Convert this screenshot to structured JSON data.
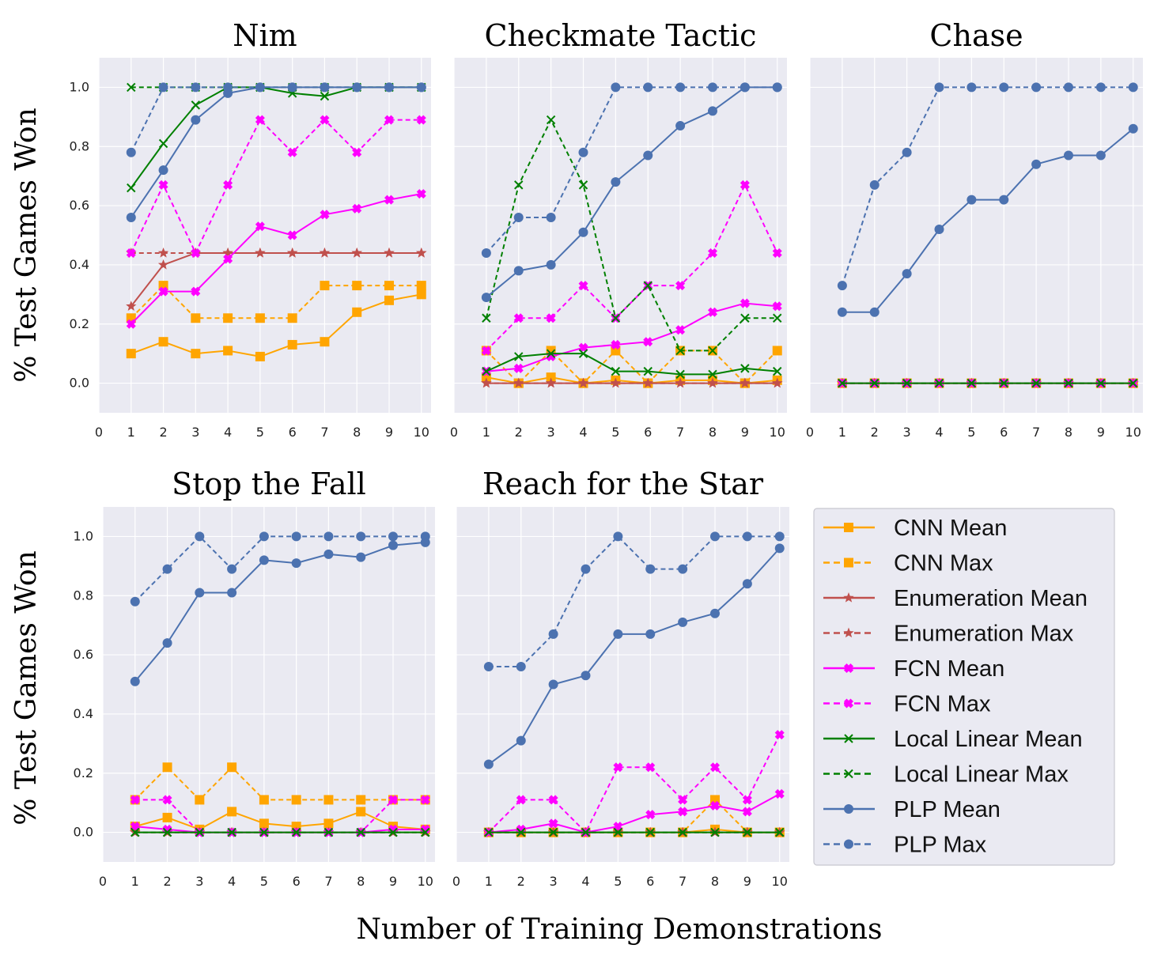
{
  "chart_data": {
    "type": "line",
    "xlabel": "Number of Training Demonstrations",
    "ylabel": "% Test Games Won",
    "xlim": [
      0,
      10.3
    ],
    "ylim": [
      -0.1,
      1.1
    ],
    "x": [
      1,
      2,
      3,
      4,
      5,
      6,
      7,
      8,
      9,
      10
    ],
    "xticks": [
      "0",
      "1",
      "2",
      "3",
      "4",
      "5",
      "6",
      "7",
      "8",
      "9",
      "10"
    ],
    "yticks": [
      "0.0",
      "0.2",
      "0.4",
      "0.6",
      "0.8",
      "1.0"
    ],
    "grid": true,
    "legend_position": "bottom-right",
    "series_styles": [
      {
        "name": "CNN Mean",
        "color": "#FFA500",
        "dash": "solid",
        "marker": "square"
      },
      {
        "name": "CNN Max",
        "color": "#FFA500",
        "dash": "dashed",
        "marker": "square"
      },
      {
        "name": "Enumeration Mean",
        "color": "#C0504D",
        "dash": "solid",
        "marker": "star"
      },
      {
        "name": "Enumeration Max",
        "color": "#C0504D",
        "dash": "dashed",
        "marker": "star"
      },
      {
        "name": "FCN Mean",
        "color": "#FF00FF",
        "dash": "solid",
        "marker": "plus"
      },
      {
        "name": "FCN Max",
        "color": "#FF00FF",
        "dash": "dashed",
        "marker": "plus"
      },
      {
        "name": "Local Linear Mean",
        "color": "#008000",
        "dash": "solid",
        "marker": "x"
      },
      {
        "name": "Local Linear Max",
        "color": "#008000",
        "dash": "dashed",
        "marker": "x"
      },
      {
        "name": "PLP Mean",
        "color": "#4C72B0",
        "dash": "solid",
        "marker": "circle"
      },
      {
        "name": "PLP Max",
        "color": "#4C72B0",
        "dash": "dashed",
        "marker": "circle"
      }
    ],
    "panels": [
      {
        "title": "Nim",
        "series": [
          {
            "name": "CNN Mean",
            "values": [
              0.1,
              0.14,
              0.1,
              0.11,
              0.09,
              0.13,
              0.14,
              0.24,
              0.28,
              0.3
            ]
          },
          {
            "name": "CNN Max",
            "values": [
              0.22,
              0.33,
              0.22,
              0.22,
              0.22,
              0.22,
              0.33,
              0.33,
              0.33,
              0.33
            ]
          },
          {
            "name": "Enumeration Mean",
            "values": [
              0.26,
              0.4,
              0.44,
              0.44,
              0.44,
              0.44,
              0.44,
              0.44,
              0.44,
              0.44
            ]
          },
          {
            "name": "Enumeration Max",
            "values": [
              0.44,
              0.44,
              0.44,
              0.44,
              0.44,
              0.44,
              0.44,
              0.44,
              0.44,
              0.44
            ]
          },
          {
            "name": "FCN Mean",
            "values": [
              0.2,
              0.31,
              0.31,
              0.42,
              0.53,
              0.5,
              0.57,
              0.59,
              0.62,
              0.64
            ]
          },
          {
            "name": "FCN Max",
            "values": [
              0.44,
              0.67,
              0.44,
              0.67,
              0.89,
              0.78,
              0.89,
              0.78,
              0.89,
              0.89
            ]
          },
          {
            "name": "Local Linear Mean",
            "values": [
              0.66,
              0.81,
              0.94,
              1.0,
              1.0,
              0.98,
              0.97,
              1.0,
              1.0,
              1.0
            ]
          },
          {
            "name": "Local Linear Max",
            "values": [
              1.0,
              1.0,
              1.0,
              1.0,
              1.0,
              1.0,
              1.0,
              1.0,
              1.0,
              1.0
            ]
          },
          {
            "name": "PLP Mean",
            "values": [
              0.56,
              0.72,
              0.89,
              0.98,
              1.0,
              1.0,
              1.0,
              1.0,
              1.0,
              1.0
            ]
          },
          {
            "name": "PLP Max",
            "values": [
              0.78,
              1.0,
              1.0,
              1.0,
              1.0,
              1.0,
              1.0,
              1.0,
              1.0,
              1.0
            ]
          }
        ]
      },
      {
        "title": "Checkmate Tactic",
        "series": [
          {
            "name": "CNN Mean",
            "values": [
              0.02,
              0.0,
              0.02,
              0.0,
              0.01,
              0.0,
              0.01,
              0.01,
              0.0,
              0.01
            ]
          },
          {
            "name": "CNN Max",
            "values": [
              0.11,
              0.0,
              0.11,
              0.0,
              0.11,
              0.0,
              0.11,
              0.11,
              0.0,
              0.11
            ]
          },
          {
            "name": "Enumeration Mean",
            "values": [
              0.0,
              0.0,
              0.0,
              0.0,
              0.0,
              0.0,
              0.0,
              0.0,
              0.0,
              0.0
            ]
          },
          {
            "name": "Enumeration Max",
            "values": [
              0.0,
              0.0,
              0.0,
              0.0,
              0.0,
              0.0,
              0.0,
              0.0,
              0.0,
              0.0
            ]
          },
          {
            "name": "FCN Mean",
            "values": [
              0.04,
              0.05,
              0.09,
              0.12,
              0.13,
              0.14,
              0.18,
              0.24,
              0.27,
              0.26
            ]
          },
          {
            "name": "FCN Max",
            "values": [
              0.11,
              0.22,
              0.22,
              0.33,
              0.22,
              0.33,
              0.33,
              0.44,
              0.67,
              0.44
            ]
          },
          {
            "name": "Local Linear Mean",
            "values": [
              0.04,
              0.09,
              0.1,
              0.1,
              0.04,
              0.04,
              0.03,
              0.03,
              0.05,
              0.04
            ]
          },
          {
            "name": "Local Linear Max",
            "values": [
              0.22,
              0.67,
              0.89,
              0.67,
              0.22,
              0.33,
              0.11,
              0.11,
              0.22,
              0.22
            ]
          },
          {
            "name": "PLP Mean",
            "values": [
              0.29,
              0.38,
              0.4,
              0.51,
              0.68,
              0.77,
              0.87,
              0.92,
              1.0,
              1.0
            ]
          },
          {
            "name": "PLP Max",
            "values": [
              0.44,
              0.56,
              0.56,
              0.78,
              1.0,
              1.0,
              1.0,
              1.0,
              1.0,
              1.0
            ]
          }
        ]
      },
      {
        "title": "Chase",
        "series": [
          {
            "name": "CNN Mean",
            "values": [
              0,
              0,
              0,
              0,
              0,
              0,
              0,
              0,
              0,
              0
            ]
          },
          {
            "name": "CNN Max",
            "values": [
              0,
              0,
              0,
              0,
              0,
              0,
              0,
              0,
              0,
              0
            ]
          },
          {
            "name": "Enumeration Mean",
            "values": [
              0,
              0,
              0,
              0,
              0,
              0,
              0,
              0,
              0,
              0
            ]
          },
          {
            "name": "Enumeration Max",
            "values": [
              0,
              0,
              0,
              0,
              0,
              0,
              0,
              0,
              0,
              0
            ]
          },
          {
            "name": "FCN Mean",
            "values": [
              0,
              0,
              0,
              0,
              0,
              0,
              0,
              0,
              0,
              0
            ]
          },
          {
            "name": "FCN Max",
            "values": [
              0,
              0,
              0,
              0,
              0,
              0,
              0,
              0,
              0,
              0
            ]
          },
          {
            "name": "Local Linear Mean",
            "values": [
              0,
              0,
              0,
              0,
              0,
              0,
              0,
              0,
              0,
              0
            ]
          },
          {
            "name": "Local Linear Max",
            "values": [
              0,
              0,
              0,
              0,
              0,
              0,
              0,
              0,
              0,
              0
            ]
          },
          {
            "name": "PLP Mean",
            "values": [
              0.24,
              0.24,
              0.37,
              0.52,
              0.62,
              0.62,
              0.74,
              0.77,
              0.77,
              0.86
            ]
          },
          {
            "name": "PLP Max",
            "values": [
              0.33,
              0.67,
              0.78,
              1.0,
              1.0,
              1.0,
              1.0,
              1.0,
              1.0,
              1.0
            ]
          }
        ]
      },
      {
        "title": "Stop the Fall",
        "series": [
          {
            "name": "CNN Mean",
            "values": [
              0.02,
              0.05,
              0.01,
              0.07,
              0.03,
              0.02,
              0.03,
              0.07,
              0.02,
              0.01
            ]
          },
          {
            "name": "CNN Max",
            "values": [
              0.11,
              0.22,
              0.11,
              0.22,
              0.11,
              0.11,
              0.11,
              0.11,
              0.11,
              0.11
            ]
          },
          {
            "name": "Enumeration Mean",
            "values": [
              0,
              0,
              0,
              0,
              0,
              0,
              0,
              0,
              0,
              0
            ]
          },
          {
            "name": "Enumeration Max",
            "values": [
              0,
              0,
              0,
              0,
              0,
              0,
              0,
              0,
              0,
              0
            ]
          },
          {
            "name": "FCN Mean",
            "values": [
              0.02,
              0.01,
              0.0,
              0.0,
              0.0,
              0.0,
              0.0,
              0.0,
              0.01,
              0.01
            ]
          },
          {
            "name": "FCN Max",
            "values": [
              0.11,
              0.11,
              0.0,
              0.0,
              0.0,
              0.0,
              0.0,
              0.0,
              0.11,
              0.11
            ]
          },
          {
            "name": "Local Linear Mean",
            "values": [
              0,
              0,
              0,
              0,
              0,
              0,
              0,
              0,
              0,
              0
            ]
          },
          {
            "name": "Local Linear Max",
            "values": [
              0,
              0,
              0,
              0,
              0,
              0,
              0,
              0,
              0,
              0
            ]
          },
          {
            "name": "PLP Mean",
            "values": [
              0.51,
              0.64,
              0.81,
              0.81,
              0.92,
              0.91,
              0.94,
              0.93,
              0.97,
              0.98
            ]
          },
          {
            "name": "PLP Max",
            "values": [
              0.78,
              0.89,
              1.0,
              0.89,
              1.0,
              1.0,
              1.0,
              1.0,
              1.0,
              1.0
            ]
          }
        ]
      },
      {
        "title": "Reach for the Star",
        "series": [
          {
            "name": "CNN Mean",
            "values": [
              0.0,
              0.0,
              0.0,
              0.0,
              0.0,
              0.0,
              0.0,
              0.01,
              0.0,
              0.0
            ]
          },
          {
            "name": "CNN Max",
            "values": [
              0.0,
              0.0,
              0.0,
              0.0,
              0.0,
              0.0,
              0.0,
              0.11,
              0.0,
              0.0
            ]
          },
          {
            "name": "Enumeration Mean",
            "values": [
              0,
              0,
              0,
              0,
              0,
              0,
              0,
              0,
              0,
              0
            ]
          },
          {
            "name": "Enumeration Max",
            "values": [
              0,
              0,
              0,
              0,
              0,
              0,
              0,
              0,
              0,
              0
            ]
          },
          {
            "name": "FCN Mean",
            "values": [
              0.0,
              0.01,
              0.03,
              0.0,
              0.02,
              0.06,
              0.07,
              0.09,
              0.07,
              0.13
            ]
          },
          {
            "name": "FCN Max",
            "values": [
              0.0,
              0.11,
              0.11,
              0.0,
              0.22,
              0.22,
              0.11,
              0.22,
              0.11,
              0.33
            ]
          },
          {
            "name": "Local Linear Mean",
            "values": [
              0,
              0,
              0,
              0,
              0,
              0,
              0,
              0,
              0,
              0
            ]
          },
          {
            "name": "Local Linear Max",
            "values": [
              0,
              0,
              0,
              0,
              0,
              0,
              0,
              0,
              0,
              0
            ]
          },
          {
            "name": "PLP Mean",
            "values": [
              0.23,
              0.31,
              0.5,
              0.53,
              0.67,
              0.67,
              0.71,
              0.74,
              0.84,
              0.96
            ]
          },
          {
            "name": "PLP Max",
            "values": [
              0.56,
              0.56,
              0.67,
              0.89,
              1.0,
              0.89,
              0.89,
              1.0,
              1.0,
              1.0
            ]
          }
        ]
      }
    ]
  }
}
